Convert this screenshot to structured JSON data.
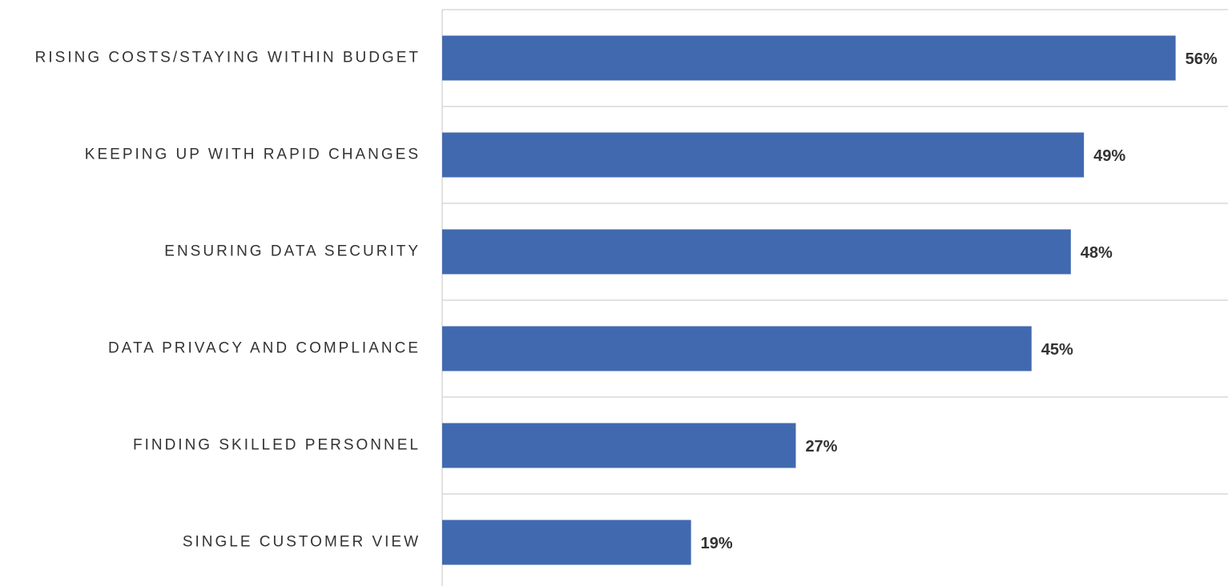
{
  "chart_data": {
    "type": "bar",
    "orientation": "horizontal",
    "categories": [
      "RISING COSTS/STAYING WITHIN BUDGET",
      "KEEPING UP WITH RAPID CHANGES",
      "ENSURING DATA SECURITY",
      "DATA PRIVACY AND COMPLIANCE",
      "FINDING SKILLED PERSONNEL",
      "SINGLE CUSTOMER VIEW"
    ],
    "values": [
      56,
      49,
      48,
      45,
      27,
      19
    ],
    "value_labels": [
      "56%",
      "49%",
      "48%",
      "45%",
      "27%",
      "19%"
    ],
    "color": "#4169af",
    "xlim": [
      0,
      60
    ]
  }
}
